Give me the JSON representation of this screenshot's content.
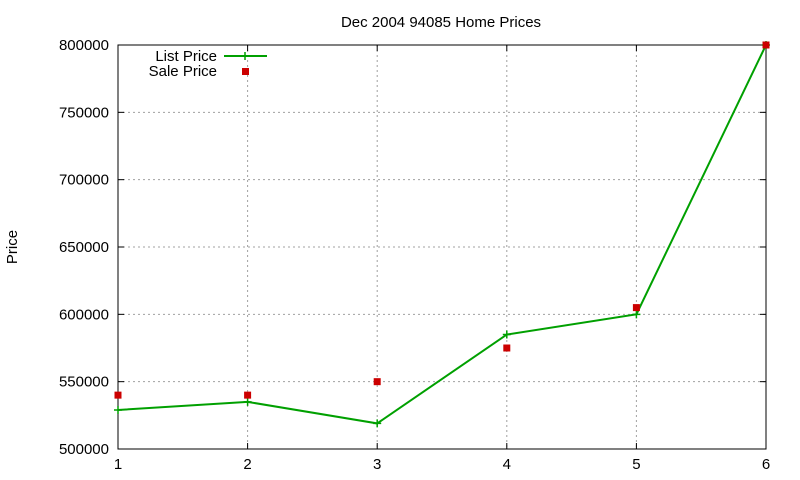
{
  "chart_data": {
    "type": "line",
    "title": "Dec 2004 94085 Home Prices",
    "xlabel": "",
    "ylabel": "Price",
    "x": [
      1,
      2,
      3,
      4,
      5,
      6
    ],
    "xlim": [
      1,
      6
    ],
    "ylim": [
      500000,
      800000
    ],
    "xticks": [
      "1",
      "2",
      "3",
      "4",
      "5",
      "6"
    ],
    "yticks": [
      "500000",
      "550000",
      "600000",
      "650000",
      "700000",
      "750000",
      "800000"
    ],
    "grid": true,
    "legend_position": "top-left",
    "series": [
      {
        "name": "List Price",
        "style": "line-with-plus-markers",
        "color": "#00a000",
        "values": [
          529000,
          535000,
          519000,
          585000,
          600000,
          800000
        ]
      },
      {
        "name": "Sale Price",
        "style": "square-markers",
        "color": "#cc0000",
        "values": [
          540000,
          540000,
          550000,
          575000,
          605000,
          800000
        ]
      }
    ]
  }
}
